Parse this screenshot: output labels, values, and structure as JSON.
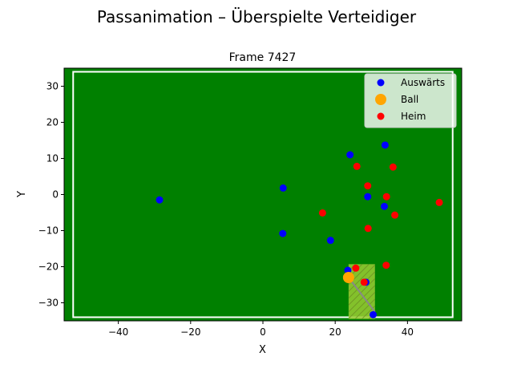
{
  "chart_data": {
    "type": "scatter",
    "title": "Passanimation – Überspielte Verteidiger",
    "subtitle": "Frame 7427",
    "xlabel": "X",
    "ylabel": "Y",
    "xlim": [
      -55,
      55
    ],
    "ylim": [
      -35,
      35
    ],
    "xticks": [
      -40,
      -20,
      0,
      20,
      40
    ],
    "yticks": [
      -30,
      -20,
      -10,
      0,
      10,
      20,
      30
    ],
    "grid": false,
    "legend_position": "top-right",
    "background_color": "#008000",
    "pitch_boundary": {
      "x": [
        -52.5,
        52.5
      ],
      "y": [
        -34,
        34
      ],
      "color": "#ffffff"
    },
    "highlight_zone": {
      "x": [
        23.7,
        31
      ],
      "y": [
        -34.5,
        -19.3
      ],
      "color": "#9acd32"
    },
    "pass_line": {
      "from": [
        23.7,
        -23
      ],
      "to": [
        31,
        -32.5
      ],
      "color": "#888888"
    },
    "series": [
      {
        "name": "Auswärts",
        "color": "#0000ff",
        "points": [
          [
            -28.6,
            -1.5
          ],
          [
            5.6,
            1.8
          ],
          [
            5.5,
            -10.8
          ],
          [
            18.7,
            -12.7
          ],
          [
            24.1,
            11
          ],
          [
            29,
            -0.6
          ],
          [
            33.8,
            13.7
          ],
          [
            33.6,
            -3.3
          ],
          [
            23.5,
            -21
          ],
          [
            28.5,
            -24.3
          ],
          [
            30.5,
            -33.3
          ]
        ]
      },
      {
        "name": "Ball",
        "color": "#ffa500",
        "points": [
          [
            23.7,
            -23
          ]
        ]
      },
      {
        "name": "Heim",
        "color": "#ff0000",
        "points": [
          [
            48.8,
            -2.2
          ],
          [
            36,
            7.6
          ],
          [
            26,
            7.8
          ],
          [
            29,
            2.4
          ],
          [
            34.2,
            -0.6
          ],
          [
            36.5,
            -5.7
          ],
          [
            16.5,
            -5.1
          ],
          [
            29.1,
            -9.4
          ],
          [
            34.1,
            -19.6
          ],
          [
            25.7,
            -20.4
          ],
          [
            28,
            -24.3
          ]
        ]
      }
    ]
  }
}
